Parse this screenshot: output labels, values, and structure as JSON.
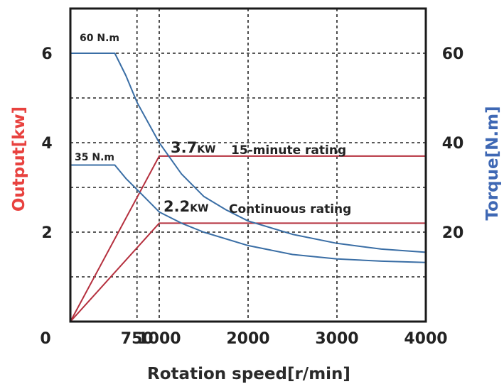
{
  "chart_data": {
    "type": "line",
    "xlabel": "Rotation speed[r/min]",
    "ylabel_left": "Output[kw]",
    "ylabel_right": "Torque[N.m]",
    "xlim": [
      0,
      4000
    ],
    "ylim_left": [
      0,
      7
    ],
    "ylim_right": [
      0,
      70
    ],
    "x_ticks": [
      0,
      750,
      1000,
      2000,
      3000,
      4000
    ],
    "x_tick_labels": [
      "750",
      "1000",
      "2000",
      "3000",
      "4000"
    ],
    "origin_label": "0",
    "y_left_ticks": [
      2,
      4,
      6
    ],
    "y_left_tick_labels": [
      "2",
      "4",
      "6"
    ],
    "y_right_ticks": [
      20,
      40,
      60
    ],
    "y_right_tick_labels": [
      "20",
      "40",
      "60"
    ],
    "grid": true,
    "colors": {
      "output": "#b5303e",
      "torque": "#3a6ea5",
      "left_title": "#e8423f",
      "right_title": "#3f68b4",
      "grid": "#222222"
    },
    "series": [
      {
        "axis": "left",
        "color_key": "output",
        "points": [
          [
            0,
            0
          ],
          [
            1000,
            3.7
          ],
          [
            4000,
            3.7
          ]
        ]
      },
      {
        "axis": "left",
        "color_key": "output",
        "points": [
          [
            0,
            0
          ],
          [
            1000,
            2.2
          ],
          [
            4000,
            2.2
          ]
        ]
      },
      {
        "axis": "right",
        "color_key": "torque",
        "points": [
          [
            0,
            60
          ],
          [
            500,
            60
          ],
          [
            625,
            55
          ],
          [
            750,
            49
          ],
          [
            1000,
            40
          ],
          [
            1250,
            33
          ],
          [
            1500,
            28
          ],
          [
            1750,
            25
          ],
          [
            2000,
            22.5
          ],
          [
            2500,
            19.5
          ],
          [
            3000,
            17.5
          ],
          [
            3500,
            16.2
          ],
          [
            4000,
            15.5
          ]
        ]
      },
      {
        "axis": "right",
        "color_key": "torque",
        "points": [
          [
            0,
            35
          ],
          [
            500,
            35
          ],
          [
            625,
            32
          ],
          [
            750,
            29.5
          ],
          [
            1000,
            24.5
          ],
          [
            1250,
            22
          ],
          [
            1500,
            20
          ],
          [
            2000,
            17
          ],
          [
            2500,
            15
          ],
          [
            3000,
            14
          ],
          [
            3500,
            13.5
          ],
          [
            4000,
            13.2
          ]
        ]
      }
    ],
    "annotations": {
      "torque_max": "60 N.m",
      "torque_cont": "35 N.m",
      "power_15min_value": "3.7",
      "power_15min_unit": "KW",
      "power_15min_label": "15-minute rating",
      "power_cont_value": "2.2",
      "power_cont_unit": "KW",
      "power_cont_label": "Continuous rating"
    }
  }
}
